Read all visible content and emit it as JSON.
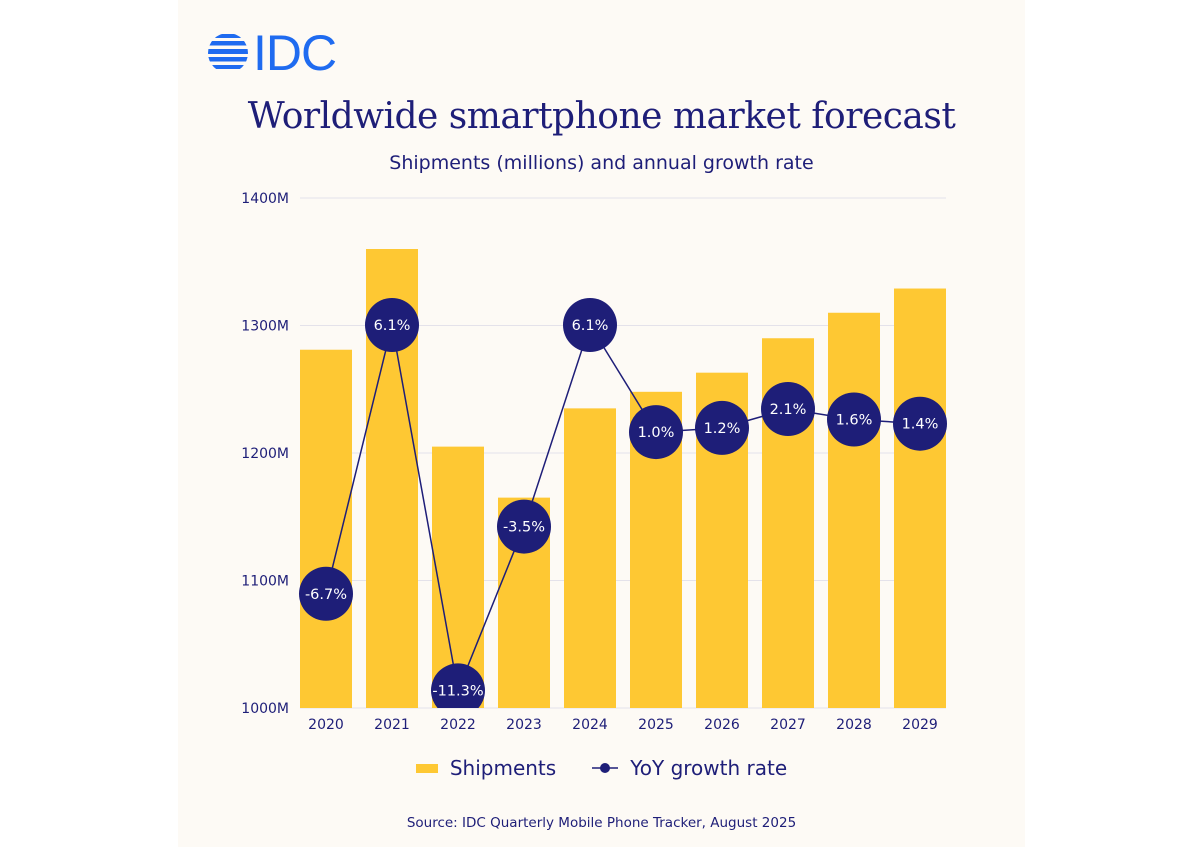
{
  "logo": {
    "text": "IDC",
    "color": "#1f6bf0"
  },
  "chart_data": {
    "type": "bar+line",
    "title": "Worldwide smartphone market forecast",
    "subtitle": "Shipments (millions) and annual growth rate",
    "categories": [
      "2020",
      "2021",
      "2022",
      "2023",
      "2024",
      "2025",
      "2026",
      "2027",
      "2028",
      "2029"
    ],
    "series": [
      {
        "name": "Shipments",
        "type": "bar",
        "color": "#fec833",
        "unit": "M",
        "values": [
          1281,
          1360,
          1205,
          1165,
          1235,
          1248,
          1263,
          1290,
          1310,
          1329
        ]
      },
      {
        "name": "YoY growth rate",
        "type": "line",
        "color": "#1e1e78",
        "unit": "%",
        "values": [
          -6.7,
          6.1,
          -11.3,
          -3.5,
          6.1,
          1.0,
          1.2,
          2.1,
          1.6,
          1.4
        ],
        "labels": [
          "-6.7%",
          "6.1%",
          "-11.3%",
          "-3.5%",
          "6.1%",
          "1.0%",
          "1.2%",
          "2.1%",
          "1.6%",
          "1.4%"
        ]
      }
    ],
    "ylim": [
      1000,
      1400
    ],
    "yticks": [
      "1000M",
      "1100M",
      "1200M",
      "1300M",
      "1400M"
    ],
    "grid": true,
    "legend": "bottom"
  },
  "source": "Source:  IDC Quarterly Mobile Phone Tracker, August 2025"
}
